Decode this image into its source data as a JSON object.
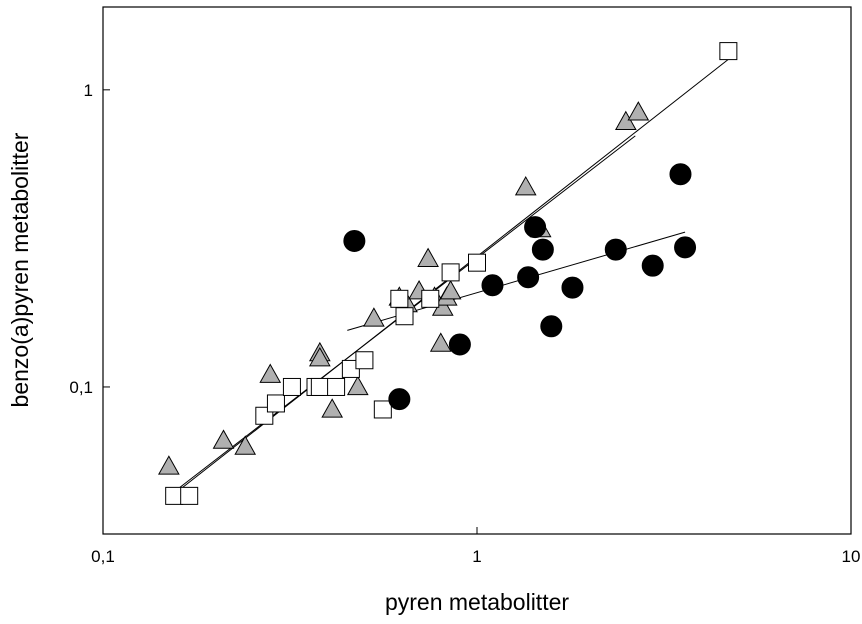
{
  "chart_data": {
    "type": "scatter",
    "title": "",
    "xlabel": "pyren metabolitter",
    "ylabel": "benzo(a)pyren metabolitter",
    "xscale": "log",
    "yscale": "log",
    "xlim": [
      0.1,
      10
    ],
    "ylim": [
      0.032,
      1.9
    ],
    "grid": false,
    "legend": "none",
    "x_ticks": [
      {
        "value": 0.1,
        "label": "0,1"
      },
      {
        "value": 1,
        "label": "1"
      },
      {
        "value": 10,
        "label": "10"
      }
    ],
    "y_ticks": [
      {
        "value": 0.1,
        "label": "0,1"
      },
      {
        "value": 1,
        "label": "1"
      }
    ],
    "series": [
      {
        "marker": "triangle",
        "fill": "#b0b0b0",
        "points": [
          [
            0.15,
            0.054
          ],
          [
            0.21,
            0.066
          ],
          [
            0.24,
            0.063
          ],
          [
            0.28,
            0.11
          ],
          [
            0.38,
            0.13
          ],
          [
            0.38,
            0.125
          ],
          [
            0.41,
            0.084
          ],
          [
            0.48,
            0.1
          ],
          [
            0.53,
            0.17
          ],
          [
            0.62,
            0.2
          ],
          [
            0.65,
            0.19
          ],
          [
            0.7,
            0.21
          ],
          [
            0.74,
            0.27
          ],
          [
            0.77,
            0.2
          ],
          [
            0.8,
            0.14
          ],
          [
            0.81,
            0.185
          ],
          [
            0.83,
            0.2
          ],
          [
            0.85,
            0.21
          ],
          [
            1.35,
            0.47
          ],
          [
            1.48,
            0.34
          ],
          [
            2.5,
            0.78
          ],
          [
            2.7,
            0.84
          ]
        ],
        "fit": [
          [
            0.15,
            0.043
          ],
          [
            2.65,
            0.7
          ]
        ]
      },
      {
        "marker": "square",
        "fill": "#ffffff",
        "points": [
          [
            0.155,
            0.043
          ],
          [
            0.17,
            0.043
          ],
          [
            0.27,
            0.08
          ],
          [
            0.29,
            0.088
          ],
          [
            0.32,
            0.1
          ],
          [
            0.37,
            0.1
          ],
          [
            0.38,
            0.1
          ],
          [
            0.42,
            0.1
          ],
          [
            0.46,
            0.115
          ],
          [
            0.5,
            0.123
          ],
          [
            0.56,
            0.084
          ],
          [
            0.62,
            0.198
          ],
          [
            0.64,
            0.173
          ],
          [
            0.75,
            0.198
          ],
          [
            0.85,
            0.243
          ],
          [
            1.0,
            0.262
          ],
          [
            4.7,
            1.35
          ]
        ],
        "fit": [
          [
            0.16,
            0.045
          ],
          [
            4.75,
            1.28
          ]
        ]
      },
      {
        "marker": "circle",
        "fill": "#000000",
        "points": [
          [
            0.47,
            0.31
          ],
          [
            0.62,
            0.091
          ],
          [
            0.9,
            0.139
          ],
          [
            1.1,
            0.22
          ],
          [
            1.37,
            0.234
          ],
          [
            1.43,
            0.345
          ],
          [
            1.5,
            0.29
          ],
          [
            1.58,
            0.16
          ],
          [
            1.8,
            0.216
          ],
          [
            2.35,
            0.29
          ],
          [
            2.95,
            0.256
          ],
          [
            3.5,
            0.52
          ],
          [
            3.6,
            0.295
          ]
        ],
        "fit": [
          [
            0.45,
            0.155
          ],
          [
            3.6,
            0.332
          ]
        ]
      }
    ]
  }
}
